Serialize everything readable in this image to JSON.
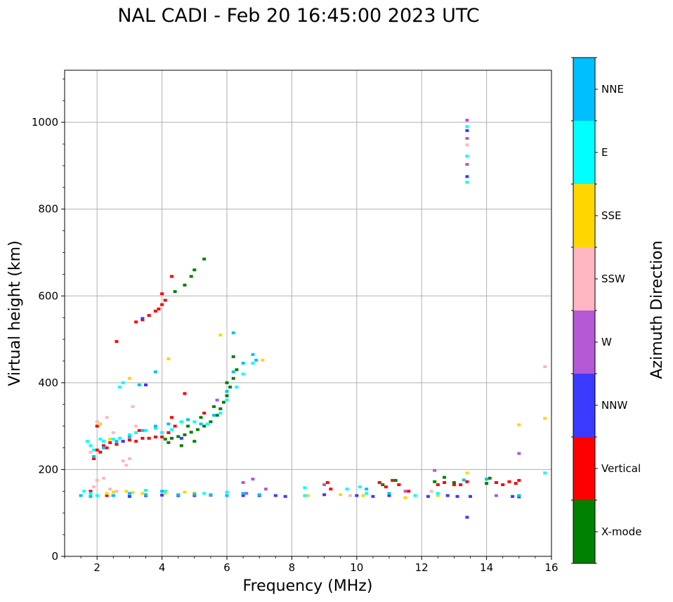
{
  "chart_data": {
    "type": "scatter",
    "title": "NAL CADI - Feb 20 16:45:00 2023 UTC",
    "xlabel": "Frequency (MHz)",
    "ylabel": "Virtual height (km)",
    "xlim": [
      1,
      16
    ],
    "ylim": [
      0,
      1120
    ],
    "xticks": [
      2,
      4,
      6,
      8,
      10,
      12,
      14,
      16
    ],
    "yticks": [
      0,
      200,
      400,
      600,
      800,
      1000
    ],
    "grid": true,
    "colorbar": {
      "title": "Azimuth Direction",
      "categories": [
        {
          "name": "X-mode",
          "color": "#008000"
        },
        {
          "name": "Vertical",
          "color": "#ff0000"
        },
        {
          "name": "NNW",
          "color": "#3a3aff"
        },
        {
          "name": "W",
          "color": "#b558d6"
        },
        {
          "name": "SSW",
          "color": "#ffb6c1"
        },
        {
          "name": "SSE",
          "color": "#ffd700"
        },
        {
          "name": "E",
          "color": "#00ffff"
        },
        {
          "name": "NNE",
          "color": "#00bfff"
        }
      ]
    },
    "series": [
      {
        "name": "X-mode",
        "points": [
          [
            4.1,
            270
          ],
          [
            4.3,
            272
          ],
          [
            4.5,
            276
          ],
          [
            4.7,
            280
          ],
          [
            4.9,
            286
          ],
          [
            5.1,
            292
          ],
          [
            5.3,
            300
          ],
          [
            5.5,
            310
          ],
          [
            5.7,
            325
          ],
          [
            5.8,
            340
          ],
          [
            5.9,
            355
          ],
          [
            6.0,
            370
          ],
          [
            6.1,
            390
          ],
          [
            6.2,
            410
          ],
          [
            6.3,
            430
          ],
          [
            4.6,
            255
          ],
          [
            4.8,
            300
          ],
          [
            5.2,
            320
          ],
          [
            5.6,
            345
          ],
          [
            6.0,
            400
          ],
          [
            6.2,
            460
          ],
          [
            4.4,
            610
          ],
          [
            4.7,
            625
          ],
          [
            4.9,
            645
          ],
          [
            5.0,
            660
          ],
          [
            5.3,
            685
          ],
          [
            13.0,
            170
          ],
          [
            12.7,
            182
          ],
          [
            14.0,
            168
          ],
          [
            14.1,
            180
          ],
          [
            12.4,
            172
          ],
          [
            10.8,
            165
          ],
          [
            11.2,
            175
          ],
          [
            4.2,
            262
          ],
          [
            5.0,
            265
          ]
        ]
      },
      {
        "name": "Vertical",
        "points": [
          [
            2.0,
            245
          ],
          [
            2.1,
            240
          ],
          [
            2.2,
            255
          ],
          [
            2.3,
            250
          ],
          [
            2.4,
            262
          ],
          [
            2.6,
            258
          ],
          [
            2.8,
            265
          ],
          [
            3.0,
            268
          ],
          [
            3.2,
            265
          ],
          [
            3.4,
            272
          ],
          [
            3.6,
            272
          ],
          [
            3.8,
            275
          ],
          [
            4.0,
            275
          ],
          [
            4.2,
            285
          ],
          [
            4.4,
            300
          ],
          [
            4.6,
            310
          ],
          [
            3.2,
            540
          ],
          [
            3.4,
            545
          ],
          [
            3.6,
            555
          ],
          [
            3.8,
            565
          ],
          [
            3.9,
            570
          ],
          [
            4.0,
            580
          ],
          [
            4.1,
            590
          ],
          [
            4.0,
            605
          ],
          [
            4.3,
            645
          ],
          [
            2.6,
            495
          ],
          [
            4.7,
            375
          ],
          [
            5.3,
            330
          ],
          [
            10.7,
            170
          ],
          [
            10.9,
            160
          ],
          [
            11.1,
            175
          ],
          [
            11.3,
            165
          ],
          [
            11.6,
            150
          ],
          [
            12.5,
            165
          ],
          [
            12.7,
            170
          ],
          [
            13.4,
            172
          ],
          [
            13.2,
            165
          ],
          [
            14.3,
            170
          ],
          [
            14.5,
            165
          ],
          [
            14.7,
            172
          ],
          [
            14.9,
            168
          ],
          [
            15.0,
            175
          ],
          [
            1.9,
            225
          ],
          [
            1.8,
            150
          ],
          [
            2.3,
            140
          ],
          [
            9.2,
            155
          ],
          [
            9.1,
            170
          ],
          [
            13.0,
            165
          ],
          [
            4.3,
            320
          ],
          [
            3.3,
            290
          ],
          [
            2.0,
            300
          ]
        ]
      },
      {
        "name": "NNW",
        "points": [
          [
            2.5,
            140
          ],
          [
            3.0,
            138
          ],
          [
            3.5,
            140
          ],
          [
            4.0,
            141
          ],
          [
            4.5,
            140
          ],
          [
            5.0,
            140
          ],
          [
            5.5,
            141
          ],
          [
            6.0,
            140
          ],
          [
            6.5,
            140
          ],
          [
            7.0,
            140
          ],
          [
            7.5,
            140
          ],
          [
            7.8,
            138
          ],
          [
            9.0,
            142
          ],
          [
            10.0,
            140
          ],
          [
            10.5,
            138
          ],
          [
            11.0,
            140
          ],
          [
            12.2,
            138
          ],
          [
            12.8,
            140
          ],
          [
            13.1,
            138
          ],
          [
            13.5,
            138
          ],
          [
            14.8,
            138
          ],
          [
            15.0,
            137
          ],
          [
            13.4,
            875
          ],
          [
            13.4,
            981
          ],
          [
            13.4,
            90
          ],
          [
            3.4,
            548
          ],
          [
            3.5,
            395
          ],
          [
            2.8,
            265
          ],
          [
            4.6,
            272
          ]
        ]
      },
      {
        "name": "W",
        "points": [
          [
            6.5,
            170
          ],
          [
            6.8,
            178
          ],
          [
            7.2,
            155
          ],
          [
            6.6,
            145
          ],
          [
            12.4,
            198
          ],
          [
            13.4,
            1005
          ],
          [
            13.4,
            963
          ],
          [
            13.4,
            903
          ],
          [
            15.0,
            237
          ],
          [
            9.0,
            165
          ],
          [
            11.5,
            150
          ],
          [
            14.3,
            140
          ],
          [
            5.7,
            360
          ]
        ]
      },
      {
        "name": "SSW",
        "points": [
          [
            1.9,
            160
          ],
          [
            2.0,
            175
          ],
          [
            2.2,
            180
          ],
          [
            2.4,
            155
          ],
          [
            2.6,
            150
          ],
          [
            2.5,
            285
          ],
          [
            2.8,
            220
          ],
          [
            3.0,
            225
          ],
          [
            3.1,
            345
          ],
          [
            3.2,
            300
          ],
          [
            2.9,
            210
          ],
          [
            13.4,
            948
          ],
          [
            15.8,
            437
          ],
          [
            2.0,
            310
          ],
          [
            2.3,
            320
          ],
          [
            1.8,
            240
          ],
          [
            12.3,
            150
          ],
          [
            9.8,
            140
          ]
        ]
      },
      {
        "name": "SSE",
        "points": [
          [
            2.3,
            145
          ],
          [
            2.5,
            148
          ],
          [
            2.9,
            150
          ],
          [
            3.1,
            147
          ],
          [
            3.4,
            145
          ],
          [
            4.1,
            145
          ],
          [
            4.7,
            148
          ],
          [
            5.0,
            146
          ],
          [
            8.5,
            140
          ],
          [
            9.5,
            142
          ],
          [
            10.2,
            140
          ],
          [
            11.5,
            135
          ],
          [
            12.5,
            140
          ],
          [
            13.4,
            192
          ],
          [
            15.0,
            303
          ],
          [
            15.8,
            318
          ],
          [
            3.0,
            410
          ],
          [
            4.2,
            455
          ],
          [
            5.8,
            510
          ],
          [
            7.1,
            452
          ],
          [
            2.1,
            305
          ],
          [
            2.4,
            270
          ]
        ]
      },
      {
        "name": "E",
        "points": [
          [
            1.7,
            265
          ],
          [
            1.8,
            255
          ],
          [
            1.9,
            245
          ],
          [
            2.1,
            270
          ],
          [
            2.2,
            265
          ],
          [
            2.5,
            270
          ],
          [
            2.7,
            272
          ],
          [
            3.0,
            280
          ],
          [
            3.2,
            285
          ],
          [
            3.5,
            290
          ],
          [
            3.8,
            295
          ],
          [
            4.0,
            285
          ],
          [
            4.3,
            292
          ],
          [
            4.6,
            310
          ],
          [
            5.0,
            310
          ],
          [
            5.4,
            305
          ],
          [
            5.8,
            330
          ],
          [
            6.0,
            360
          ],
          [
            6.3,
            390
          ],
          [
            6.5,
            420
          ],
          [
            6.8,
            445
          ],
          [
            1.6,
            150
          ],
          [
            1.8,
            145
          ],
          [
            2.0,
            140
          ],
          [
            3.5,
            152
          ],
          [
            4.1,
            150
          ],
          [
            5.3,
            145
          ],
          [
            6.0,
            148
          ],
          [
            8.4,
            158
          ],
          [
            8.4,
            140
          ],
          [
            9.7,
            155
          ],
          [
            10.1,
            160
          ],
          [
            10.3,
            145
          ],
          [
            11.8,
            140
          ],
          [
            12.5,
            145
          ],
          [
            13.4,
            862
          ],
          [
            13.4,
            922
          ],
          [
            13.4,
            990
          ],
          [
            15.8,
            192
          ],
          [
            2.8,
            400
          ],
          [
            2.7,
            390
          ]
        ]
      },
      {
        "name": "NNE",
        "points": [
          [
            1.5,
            140
          ],
          [
            1.8,
            138
          ],
          [
            2.5,
            140
          ],
          [
            3.0,
            145
          ],
          [
            3.5,
            142
          ],
          [
            4.0,
            150
          ],
          [
            4.5,
            142
          ],
          [
            5.0,
            143
          ],
          [
            5.5,
            142
          ],
          [
            6.0,
            140
          ],
          [
            6.5,
            145
          ],
          [
            7.0,
            142
          ],
          [
            1.9,
            230
          ],
          [
            2.2,
            250
          ],
          [
            2.6,
            265
          ],
          [
            3.0,
            275
          ],
          [
            3.4,
            290
          ],
          [
            3.8,
            300
          ],
          [
            4.2,
            305
          ],
          [
            4.8,
            315
          ],
          [
            5.2,
            305
          ],
          [
            5.6,
            325
          ],
          [
            6.0,
            380
          ],
          [
            6.2,
            425
          ],
          [
            6.2,
            515
          ],
          [
            6.5,
            445
          ],
          [
            6.8,
            465
          ],
          [
            6.9,
            452
          ],
          [
            3.3,
            395
          ],
          [
            3.8,
            425
          ],
          [
            14.0,
            178
          ],
          [
            15.0,
            140
          ],
          [
            10.3,
            155
          ],
          [
            11.0,
            145
          ],
          [
            13.3,
            176
          ]
        ]
      }
    ]
  }
}
